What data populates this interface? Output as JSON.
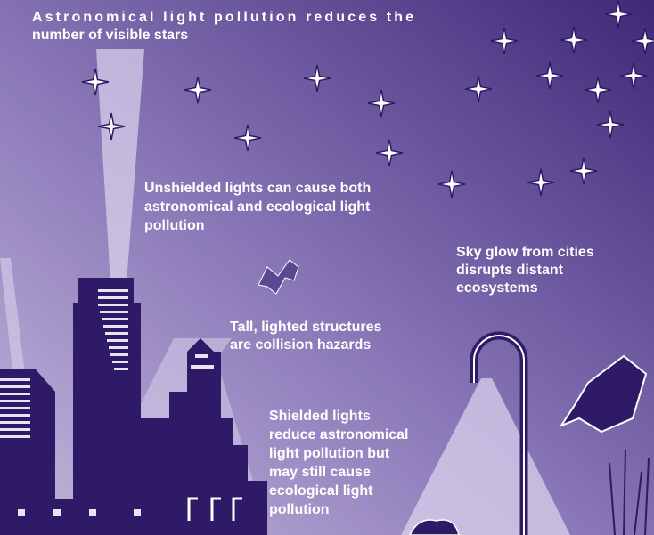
{
  "annotations": [
    {
      "lines": [
        "Astronomical light pollution reduces the",
        "number of visible stars"
      ]
    },
    {
      "lines": [
        "Unshielded lights can cause both",
        "astronomical and ecological light",
        "pollution"
      ]
    },
    {
      "lines": [
        "Sky glow from cities",
        "disrupts distant",
        "ecosystems"
      ]
    },
    {
      "lines": [
        "Tall, lighted structures",
        "are collision hazards"
      ]
    },
    {
      "lines": [
        "Shielded lights",
        "reduce astronomical",
        "light pollution but",
        "may still cause",
        "ecological light",
        "pollution"
      ]
    }
  ]
}
